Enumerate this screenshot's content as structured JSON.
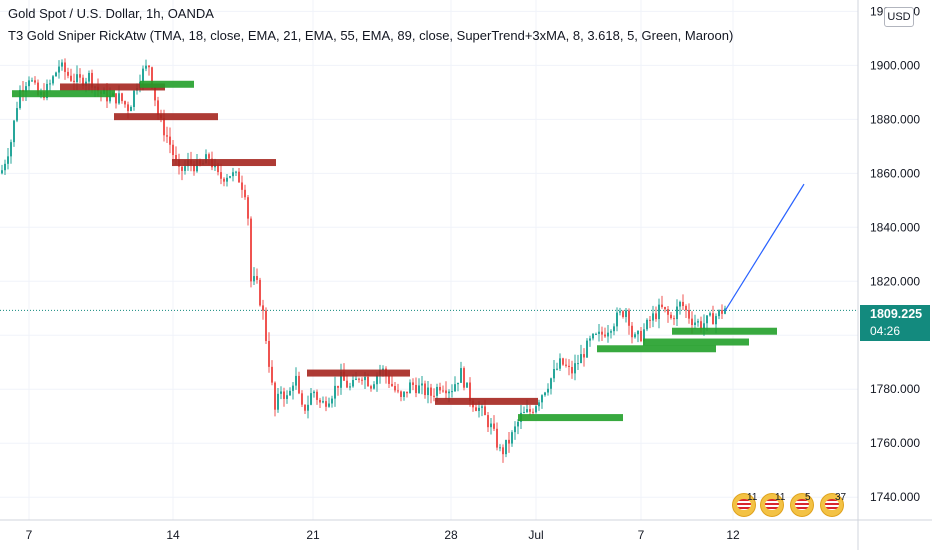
{
  "header": {
    "title": "Gold Spot / U.S. Dollar, 1h, OANDA",
    "indicator": "T3 Gold Sniper RickAtw (TMA, 18, close, EMA, 21, EMA, 55, EMA, 89, close, SuperTrend+3xMA, 8, 3.618, 5, Green, Maroon)"
  },
  "price_axis": {
    "currency": "USD"
  },
  "last_price": {
    "value": "1809.225",
    "countdown": "04:26"
  },
  "events": [
    {
      "count": "11"
    },
    {
      "count": "11"
    },
    {
      "count": "5"
    },
    {
      "count": "37"
    }
  ],
  "colors": {
    "up": "#26a69a",
    "down": "#ef5350",
    "support": "#22a02a",
    "resistance": "#a5261f",
    "projection": "#2962ff",
    "last_price": "#138a7e"
  },
  "chart_data": {
    "type": "candlestick",
    "title": "Gold Spot / U.S. Dollar, 1h, OANDA",
    "x_ticks": [
      "7",
      "14",
      "21",
      "28",
      "Jul",
      "7",
      "12"
    ],
    "y_ticks": [
      1740,
      1760,
      1780,
      1800,
      1820,
      1840,
      1860,
      1880,
      1900,
      1920
    ],
    "ylim": [
      1736,
      1922
    ],
    "grid": true,
    "price_path": [
      [
        0,
        1860
      ],
      [
        10,
        1872
      ],
      [
        18,
        1890
      ],
      [
        28,
        1896
      ],
      [
        38,
        1888
      ],
      [
        48,
        1892
      ],
      [
        58,
        1900
      ],
      [
        68,
        1896
      ],
      [
        78,
        1894
      ],
      [
        88,
        1896
      ],
      [
        98,
        1890
      ],
      [
        108,
        1888
      ],
      [
        118,
        1888
      ],
      [
        128,
        1884
      ],
      [
        138,
        1896
      ],
      [
        148,
        1900
      ],
      [
        158,
        1880
      ],
      [
        168,
        1872
      ],
      [
        178,
        1860
      ],
      [
        188,
        1864
      ],
      [
        198,
        1862
      ],
      [
        208,
        1866
      ],
      [
        218,
        1858
      ],
      [
        228,
        1860
      ],
      [
        238,
        1858
      ],
      [
        246,
        1852
      ],
      [
        250,
        1820
      ],
      [
        255,
        1820
      ],
      [
        262,
        1808
      ],
      [
        268,
        1790
      ],
      [
        274,
        1772
      ],
      [
        280,
        1780
      ],
      [
        287,
        1776
      ],
      [
        294,
        1786
      ],
      [
        300,
        1772
      ],
      [
        306,
        1774
      ],
      [
        312,
        1780
      ],
      [
        320,
        1774
      ],
      [
        330,
        1778
      ],
      [
        340,
        1784
      ],
      [
        350,
        1780
      ],
      [
        360,
        1786
      ],
      [
        370,
        1782
      ],
      [
        380,
        1788
      ],
      [
        390,
        1782
      ],
      [
        400,
        1776
      ],
      [
        410,
        1782
      ],
      [
        420,
        1780
      ],
      [
        430,
        1778
      ],
      [
        440,
        1782
      ],
      [
        450,
        1780
      ],
      [
        460,
        1786
      ],
      [
        470,
        1776
      ],
      [
        480,
        1772
      ],
      [
        490,
        1766
      ],
      [
        500,
        1756
      ],
      [
        510,
        1762
      ],
      [
        520,
        1770
      ],
      [
        530,
        1772
      ],
      [
        540,
        1778
      ],
      [
        550,
        1784
      ],
      [
        560,
        1790
      ],
      [
        570,
        1786
      ],
      [
        580,
        1792
      ],
      [
        590,
        1798
      ],
      [
        600,
        1800
      ],
      [
        610,
        1804
      ],
      [
        620,
        1808
      ],
      [
        626,
        1810
      ],
      [
        632,
        1798
      ],
      [
        640,
        1800
      ],
      [
        650,
        1806
      ],
      [
        660,
        1810
      ],
      [
        670,
        1806
      ],
      [
        680,
        1812
      ],
      [
        690,
        1806
      ],
      [
        700,
        1804
      ],
      [
        710,
        1806
      ],
      [
        718,
        1808
      ],
      [
        724,
        1810
      ]
    ],
    "levels": [
      {
        "kind": "resistance",
        "price": 1892,
        "from": 60,
        "to": 165
      },
      {
        "kind": "support",
        "price": 1893,
        "from": 140,
        "to": 194
      },
      {
        "kind": "support",
        "price": 1889.5,
        "from": 12,
        "to": 115
      },
      {
        "kind": "resistance",
        "price": 1881,
        "from": 114,
        "to": 218
      },
      {
        "kind": "resistance",
        "price": 1864,
        "from": 172,
        "to": 276
      },
      {
        "kind": "resistance",
        "price": 1786,
        "from": 307,
        "to": 410
      },
      {
        "kind": "resistance",
        "price": 1775.5,
        "from": 435,
        "to": 538
      },
      {
        "kind": "support",
        "price": 1769.5,
        "from": 518,
        "to": 623
      },
      {
        "kind": "support",
        "price": 1795,
        "from": 597,
        "to": 716
      },
      {
        "kind": "support",
        "price": 1797.5,
        "from": 643,
        "to": 749
      },
      {
        "kind": "support",
        "price": 1801.5,
        "from": 672,
        "to": 777
      }
    ],
    "projection": {
      "from": [
        725,
        1809
      ],
      "to": [
        804,
        1856
      ]
    },
    "last_price": 1809.225
  }
}
